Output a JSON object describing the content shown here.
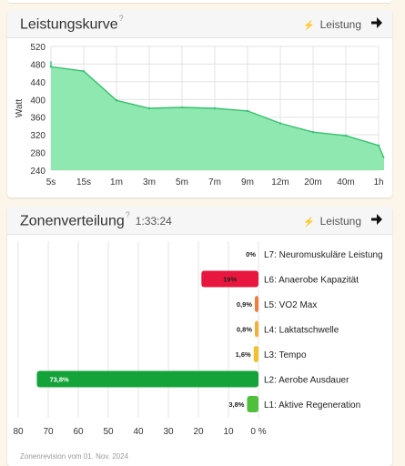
{
  "power_curve": {
    "title": "Leistungskurve",
    "help_mark": "?",
    "metric_icon": "lightning-bolt-icon",
    "metric_label": "Leistung",
    "arrow_icon": "arrow-right-icon",
    "ylabel": "Watt",
    "y_ticks": [
      "520",
      "480",
      "440",
      "400",
      "360",
      "320",
      "280",
      "240"
    ],
    "x_ticks": [
      "5s",
      "15s",
      "1m",
      "3m",
      "5m",
      "7m",
      "9m",
      "12m",
      "20m",
      "40m",
      "1h"
    ],
    "fill_color": "#8ee8b0",
    "line_color": "#35c16e"
  },
  "zones": {
    "title": "Zonenverteilung",
    "help_mark": "?",
    "duration": "1:33:24",
    "metric_icon": "lightning-bolt-icon",
    "metric_label": "Leistung",
    "arrow_icon": "arrow-right-icon",
    "x_ticks": [
      "80",
      "70",
      "60",
      "50",
      "40",
      "30",
      "20",
      "10",
      "0 %"
    ],
    "footer": "Zonenrevision vom 01. Nov. 2024"
  },
  "chart_data": [
    {
      "type": "area",
      "title": "Leistungskurve",
      "ylabel": "Watt",
      "ylim": [
        240,
        520
      ],
      "x": [
        "5s",
        "15s",
        "1m",
        "3m",
        "5m",
        "7m",
        "9m",
        "12m",
        "20m",
        "40m",
        "1h"
      ],
      "y": [
        474,
        464,
        398,
        380,
        382,
        380,
        374,
        346,
        326,
        318,
        296
      ],
      "start_value": 486,
      "end_value": 267,
      "grid": true
    },
    {
      "type": "bar",
      "title": "Zonenverteilung",
      "orientation": "horizontal",
      "xlim": [
        80,
        0
      ],
      "unit": "%",
      "categories": [
        "L7: Neuromuskuläre Leistung",
        "L6: Anaerobe Kapazität",
        "L5: VO2 Max",
        "L4: Laktatschwelle",
        "L3: Tempo",
        "L2: Aerobe Ausdauer",
        "L1: Aktive Regeneration"
      ],
      "values": [
        0,
        19,
        0.9,
        0.8,
        1.6,
        73.8,
        3.8
      ],
      "labels": [
        "0%",
        "19%",
        "0,9%",
        "0,8%",
        "1,6%",
        "73,8%",
        "3,8%"
      ],
      "colors": [
        "#8a4fb5",
        "#e8173f",
        "#f07d3a",
        "#f2b134",
        "#f2c12e",
        "#14a339",
        "#4fbf3c"
      ],
      "grid": true
    }
  ]
}
